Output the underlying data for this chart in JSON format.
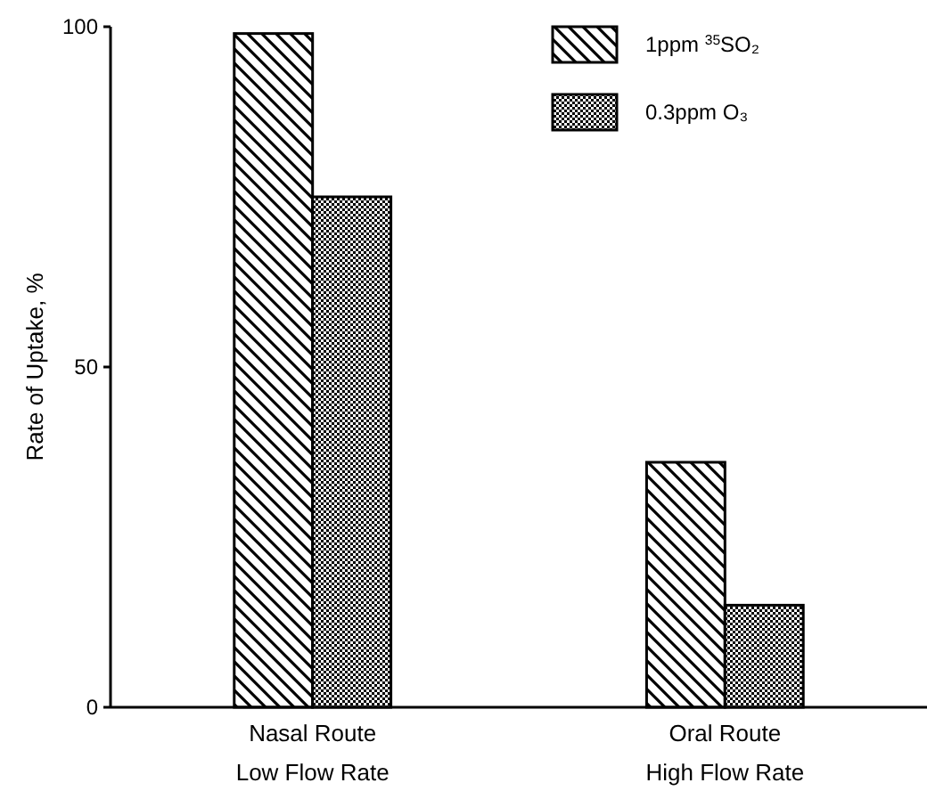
{
  "chart_data": {
    "type": "bar",
    "ylabel": "Rate of Uptake, %",
    "categories": [
      "Nasal Route\nLow Flow Rate",
      "Oral Route\nHigh Flow Rate"
    ],
    "series": [
      {
        "name": "1ppm $^{35}$SO₂",
        "color": "#000000",
        "values": [
          99,
          36
        ]
      },
      {
        "name": "0.3ppm O₃",
        "color": "#000000",
        "values": [
          75,
          15
        ]
      }
    ],
    "ylim": [
      0,
      100
    ],
    "yticks": [
      0,
      50,
      100
    ],
    "legend": "top right",
    "grid": false
  }
}
